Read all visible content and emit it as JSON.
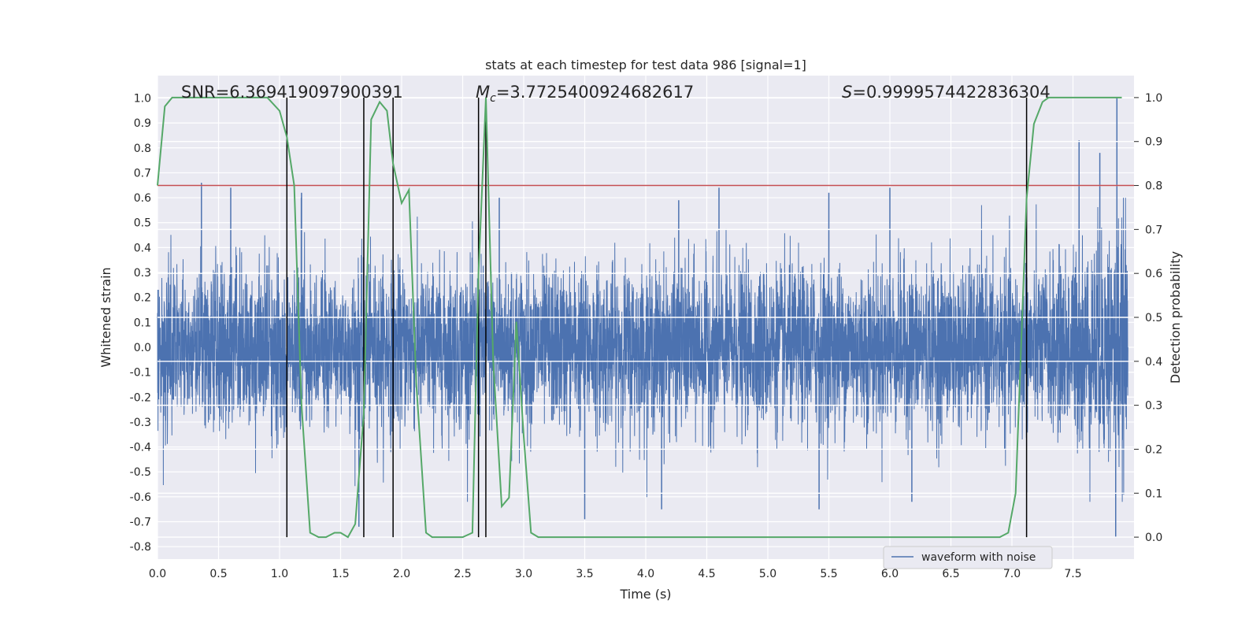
{
  "chart_data": {
    "type": "line",
    "title": "stats at each timestep for test data 986 [signal=1]",
    "xlabel": "Time (s)",
    "ylabel": "Whitened strain",
    "ylabel_right": "Detection probability",
    "xlim": [
      0.0,
      8.0
    ],
    "ylim": [
      -0.85,
      1.09
    ],
    "ylim_right": [
      -0.05,
      1.05
    ],
    "x_ticks": [
      "0.0",
      "0.5",
      "1.0",
      "1.5",
      "2.0",
      "2.5",
      "3.0",
      "3.5",
      "4.0",
      "4.5",
      "5.0",
      "5.5",
      "6.0",
      "6.5",
      "7.0",
      "7.5"
    ],
    "y_ticks": [
      "1.0",
      "0.9",
      "0.8",
      "0.7",
      "0.6",
      "0.5",
      "0.4",
      "0.3",
      "0.2",
      "0.1",
      "0.0",
      "-0.1",
      "-0.2",
      "-0.3",
      "-0.4",
      "-0.5",
      "-0.6",
      "-0.7",
      "-0.8"
    ],
    "y_ticks_right": [
      "1.0",
      "0.9",
      "0.8",
      "0.7",
      "0.6",
      "0.5",
      "0.4",
      "0.3",
      "0.2",
      "0.1",
      "0.0"
    ],
    "grid": true,
    "legend": {
      "position": "lower-right",
      "entries": [
        "waveform with noise"
      ]
    },
    "annotations": {
      "snr": "SNR=6.369419097900391",
      "mc_symbol": "M",
      "mc_sub": "c",
      "mc_value": "=3.7725400924682617",
      "s_symbol": "S",
      "s_value": "=0.9999574422836304"
    },
    "threshold_right": 0.8,
    "vlines_x": [
      1.06,
      1.69,
      1.93,
      2.63,
      2.69,
      7.12
    ],
    "vlines_range_right": [
      0.0,
      1.0
    ],
    "series": [
      {
        "name": "waveform with noise",
        "axis": "left",
        "kind": "noise",
        "color": "#4c72b0",
        "typical_amplitude": 0.16,
        "spikes": [
          [
            0.36,
            0.66
          ],
          [
            0.6,
            0.64
          ],
          [
            1.18,
            0.62
          ],
          [
            2.8,
            0.6
          ],
          [
            4.27,
            0.59
          ],
          [
            4.6,
            0.64
          ],
          [
            5.5,
            0.62
          ],
          [
            6.0,
            0.64
          ],
          [
            7.55,
            0.83
          ],
          [
            7.72,
            0.78
          ],
          [
            7.86,
            1.0
          ],
          [
            1.65,
            -0.72
          ],
          [
            3.5,
            -0.69
          ],
          [
            4.13,
            -0.65
          ],
          [
            5.42,
            -0.65
          ],
          [
            6.18,
            -0.62
          ],
          [
            7.85,
            -0.76
          ],
          [
            2.9,
            0.3
          ]
        ]
      },
      {
        "name": "detection probability",
        "axis": "right",
        "kind": "line",
        "color": "#55a868",
        "x": [
          0.0,
          0.06,
          0.12,
          0.25,
          0.5,
          0.75,
          0.9,
          1.0,
          1.06,
          1.12,
          1.18,
          1.25,
          1.32,
          1.38,
          1.45,
          1.5,
          1.56,
          1.62,
          1.69,
          1.75,
          1.82,
          1.88,
          1.93,
          2.0,
          2.06,
          2.12,
          2.2,
          2.25,
          2.32,
          2.5,
          2.58,
          2.63,
          2.69,
          2.75,
          2.82,
          2.88,
          2.94,
          3.0,
          3.06,
          3.12,
          3.2,
          3.5,
          3.6,
          3.75,
          3.9,
          4.0,
          4.25,
          4.5,
          5.0,
          5.5,
          6.0,
          6.5,
          6.8,
          6.9,
          6.97,
          7.03,
          7.12,
          7.18,
          7.25,
          7.3,
          7.4,
          7.6,
          7.9
        ],
        "y": [
          0.8,
          0.98,
          1.0,
          1.0,
          1.0,
          1.0,
          1.0,
          0.97,
          0.91,
          0.8,
          0.3,
          0.01,
          0.0,
          0.0,
          0.01,
          0.01,
          0.0,
          0.03,
          0.28,
          0.95,
          0.99,
          0.97,
          0.85,
          0.76,
          0.79,
          0.35,
          0.01,
          0.0,
          0.0,
          0.0,
          0.01,
          0.6,
          1.0,
          0.4,
          0.07,
          0.09,
          0.49,
          0.23,
          0.01,
          0.0,
          0.0,
          0.0,
          0.0,
          0.0,
          0.0,
          0.0,
          0.0,
          0.0,
          0.0,
          0.0,
          0.0,
          0.0,
          0.0,
          0.0,
          0.01,
          0.1,
          0.77,
          0.94,
          0.99,
          1.0,
          1.0,
          1.0,
          1.0
        ]
      }
    ]
  }
}
